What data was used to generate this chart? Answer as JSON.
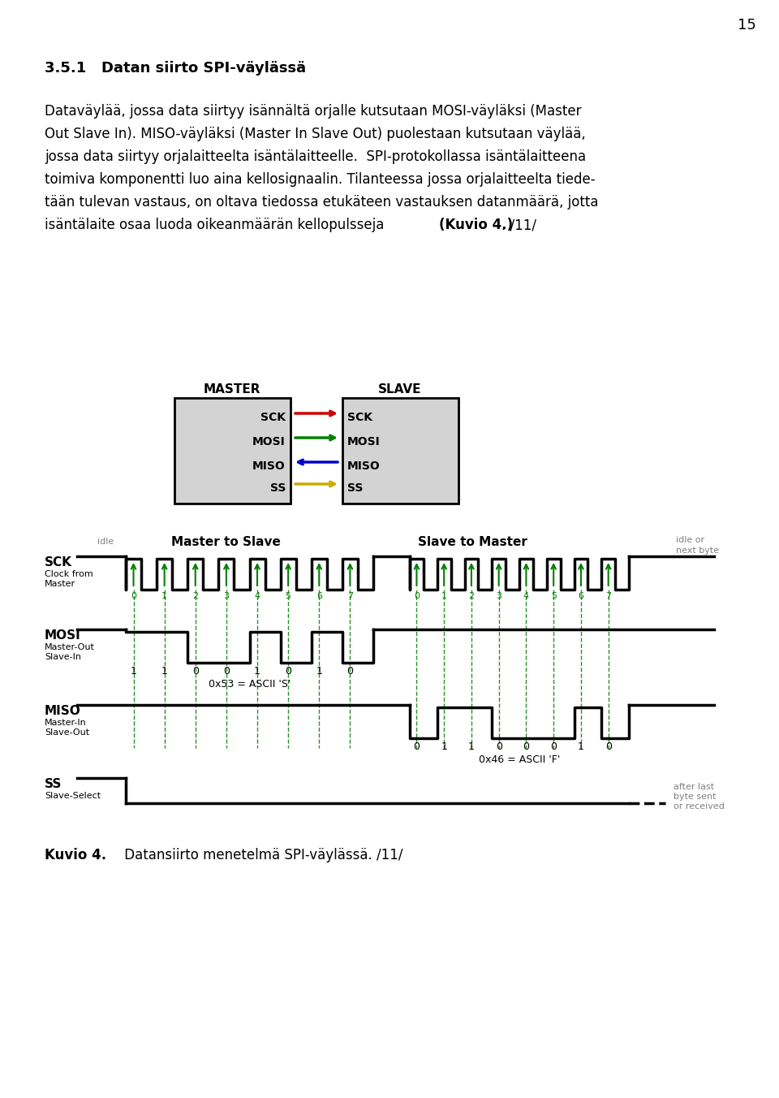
{
  "page_number": "15",
  "heading": "3.5.1   Datan siirto SPI-väylässä",
  "para_lines": [
    "Dataväylää, jossa data siirtyy isännältä orjalle kutsutaan MOSI-väyläksi (Master",
    "Out Slave In). MISO-väyläksi (Master In Slave Out) puolestaan kutsutaan väylää,",
    "jossa data siirtyy orjalaitteelta isäntälaitteelle.  SPI-protokollassa isäntälaitteena",
    "toimiva komponentti luo aina kellosignaalin. Tilanteessa jossa orjalaitteelta tiede-",
    "tään tulevan vastaus, on oltava tiedossa etukäteen vastauksen datanmäärä, jotta"
  ],
  "para_last_normal": "isäntälaite osaa luoda oikeanmäärän kellopulsseja ",
  "para_last_bold": "(Kuvio 4.)",
  "para_last_end": ". /11/",
  "figure_caption_bold": "Kuvio 4.",
  "figure_caption_rest": " Datansiirto menetelmä SPI-väylässä. /11/",
  "bg_color": "#ffffff",
  "text_color": "#000000",
  "gray_color": "#808080",
  "green_color": "#008000",
  "red_color": "#cc0000",
  "blue_color": "#0000cc",
  "yellow_color": "#ccaa00",
  "box_fill": "#d3d3d3",
  "box_edge": "#000000",
  "pin_labels": [
    "SCK",
    "MOSI",
    "MISO",
    "SS"
  ],
  "pin_colors": [
    "#cc0000",
    "#008000",
    "#0000cc",
    "#ccaa00"
  ],
  "arrow_dirs": [
    1,
    1,
    -1,
    1
  ],
  "mosi_bits": [
    1,
    1,
    0,
    0,
    1,
    0,
    1,
    0
  ],
  "mosi_label": "0x53 = ASCII 'S'",
  "miso_bits": [
    0,
    1,
    1,
    0,
    0,
    0,
    1,
    0
  ],
  "miso_label": "0x46 = ASCII 'F'"
}
